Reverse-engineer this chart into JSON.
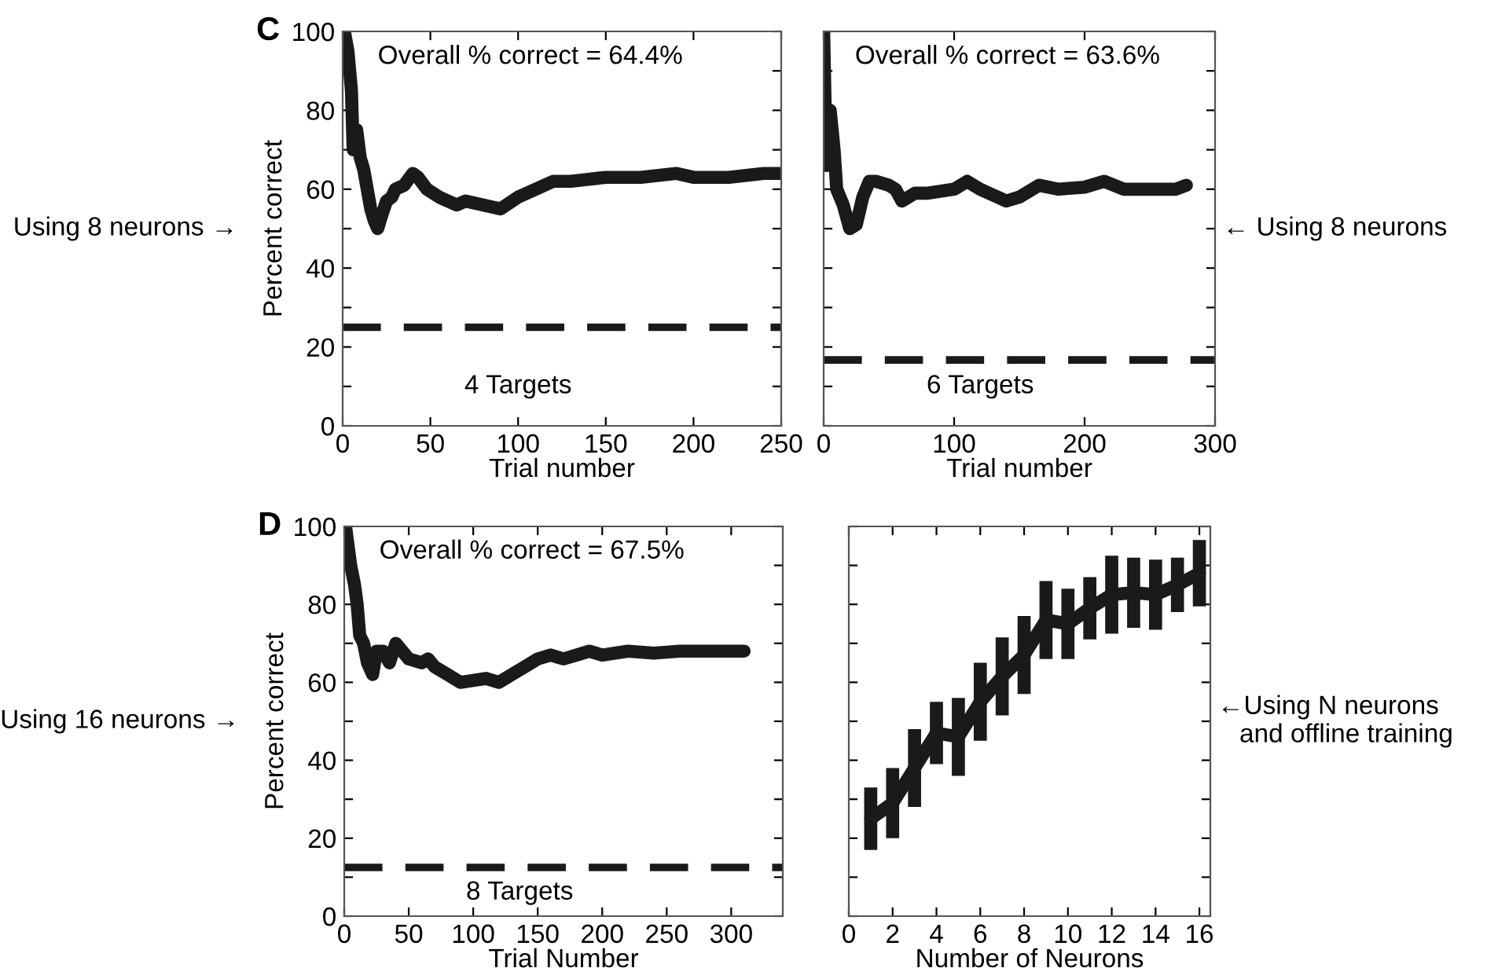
{
  "chart_data": [
    {
      "type": "line",
      "title": "C",
      "xlabel": "Trial number",
      "ylabel": "Percent correct",
      "xlim": [
        0,
        250
      ],
      "ylim": [
        0,
        100
      ],
      "xticks": [
        0,
        50,
        100,
        150,
        200,
        250
      ],
      "yticks": [
        0,
        {
          "value": 10,
          "label": null
        },
        20,
        {
          "value": 30,
          "label": null
        },
        40,
        {
          "value": 50,
          "label": null
        },
        60,
        {
          "value": 70,
          "label": null
        },
        80,
        {
          "value": 90,
          "label": null
        },
        100
      ],
      "marker": "none",
      "line_style": "solid",
      "series": [
        {
          "color": "#1a1a1a",
          "x": [
            1,
            3,
            5,
            6,
            8,
            10,
            12,
            14,
            16,
            18,
            20,
            22,
            25,
            28,
            30,
            35,
            40,
            43,
            48,
            55,
            65,
            70,
            80,
            90,
            100,
            110,
            120,
            130,
            140,
            150,
            170,
            190,
            200,
            220,
            240,
            250
          ],
          "values": [
            100,
            95,
            85,
            70,
            75,
            68,
            65,
            60,
            55,
            52,
            50,
            53,
            57,
            58,
            60,
            61,
            64,
            63,
            60,
            58,
            56,
            57,
            56,
            55,
            58,
            60,
            62,
            62,
            62.5,
            63,
            63,
            64,
            63,
            63,
            64,
            64
          ]
        }
      ],
      "ref_lines": [
        {
          "axis": "y",
          "value": 25,
          "color": "#1a1a1a",
          "line_style": "dashed"
        }
      ],
      "annotations": [
        "Overall % correct = 64.4%",
        "4 Targets",
        "Using 8 neurons →"
      ]
    },
    {
      "type": "line",
      "xlabel": "Trial number",
      "xlim": [
        0,
        300
      ],
      "ylim": [
        0,
        100
      ],
      "xticks": [
        0,
        100,
        200,
        300
      ],
      "yticks": [
        0,
        10,
        20,
        30,
        40,
        50,
        60,
        70,
        80,
        90,
        100
      ],
      "tick_labels": "x",
      "marker": "none",
      "line_style": "solid",
      "series": [
        {
          "color": "#1a1a1a",
          "x": [
            0,
            2,
            5,
            8,
            10,
            15,
            20,
            25,
            30,
            35,
            40,
            50,
            55,
            60,
            70,
            80,
            100,
            110,
            120,
            140,
            150,
            165,
            180,
            200,
            215,
            230,
            250,
            270,
            278
          ],
          "values": [
            100,
            66,
            80,
            70,
            60,
            56,
            50,
            51,
            58,
            62,
            62,
            61,
            60,
            57,
            59,
            59,
            60,
            62,
            60,
            57,
            58,
            61,
            60,
            60.5,
            62,
            60,
            60,
            60,
            61
          ]
        }
      ],
      "ref_lines": [
        {
          "axis": "y",
          "value": 16.7,
          "color": "#1a1a1a",
          "line_style": "dashed"
        }
      ],
      "annotations": [
        "Overall % correct = 63.6%",
        "6 Targets",
        "← Using 8 neurons"
      ]
    },
    {
      "type": "line",
      "title": "D",
      "xlabel": "Trial Number",
      "ylabel": "Percent correct",
      "xlim": [
        0,
        340
      ],
      "ylim": [
        0,
        100
      ],
      "xticks": [
        0,
        50,
        100,
        150,
        200,
        250,
        300
      ],
      "yticks": [
        0,
        {
          "value": 10,
          "label": null
        },
        20,
        {
          "value": 30,
          "label": null
        },
        40,
        {
          "value": 50,
          "label": null
        },
        60,
        {
          "value": 70,
          "label": null
        },
        80,
        {
          "value": 90,
          "label": null
        },
        100
      ],
      "marker": "none",
      "line_style": "solid",
      "series": [
        {
          "color": "#1a1a1a",
          "x": [
            1,
            3,
            5,
            8,
            10,
            12,
            15,
            18,
            22,
            25,
            30,
            35,
            40,
            45,
            50,
            60,
            65,
            70,
            80,
            90,
            100,
            110,
            120,
            130,
            140,
            150,
            160,
            170,
            180,
            190,
            200,
            220,
            240,
            260,
            280,
            300,
            310
          ],
          "values": [
            100,
            95,
            90,
            85,
            80,
            72,
            70,
            65,
            62,
            68,
            68,
            65,
            70,
            68,
            66,
            65,
            66,
            64,
            62,
            60,
            60.5,
            61,
            60,
            62,
            64,
            66,
            67,
            66,
            67,
            68,
            67,
            68,
            67.5,
            68,
            68,
            68,
            68
          ]
        }
      ],
      "ref_lines": [
        {
          "axis": "y",
          "value": 12.5,
          "color": "#1a1a1a",
          "line_style": "dashed"
        }
      ],
      "annotations": [
        "Overall % correct = 67.5%",
        "8 Targets",
        "Using 16 neurons →"
      ]
    },
    {
      "type": "line",
      "xlabel": "Number of Neurons",
      "xlim": [
        0,
        16.5
      ],
      "ylim": [
        0,
        100
      ],
      "xticks": [
        0,
        2,
        4,
        6,
        8,
        10,
        12,
        14,
        16
      ],
      "yticks": [
        0,
        10,
        20,
        30,
        40,
        50,
        60,
        70,
        80,
        90,
        100
      ],
      "tick_labels": "x",
      "marker": "none",
      "line_style": "solid",
      "series": [
        {
          "color": "#1a1a1a",
          "x": [
            1,
            2,
            3,
            4,
            5,
            6,
            7,
            8,
            9,
            10,
            11,
            12,
            13,
            14,
            15,
            16
          ],
          "values": [
            25,
            29,
            38,
            47,
            46,
            55,
            61.5,
            67,
            76,
            75,
            79,
            82.5,
            83,
            82.5,
            85,
            88
          ],
          "errors": [
            8,
            9,
            10,
            8,
            10,
            10,
            10,
            10,
            10,
            9,
            8,
            10,
            9,
            9,
            7,
            8.5
          ]
        }
      ],
      "annotations": [
        "←Using N neurons\n   and offline training"
      ]
    }
  ]
}
